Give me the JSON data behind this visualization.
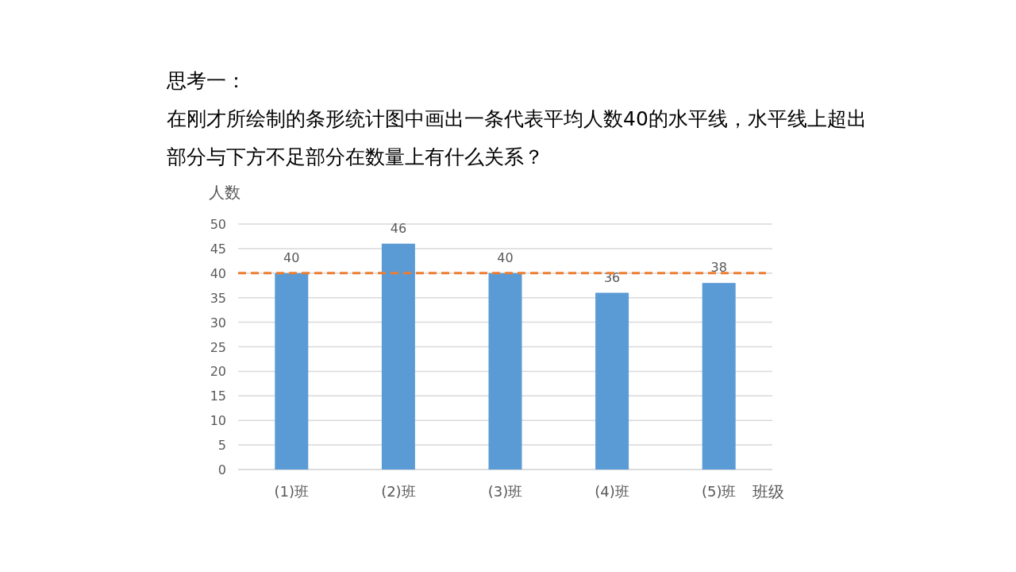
{
  "chart_data": {
    "type": "bar",
    "title": "思考一：",
    "subtitle": "在刚才所绘制的条形统计图中画出一条代表平均人数40的水平线，水平线上超出部分与下方不足部分在数量上有什么关系？",
    "xlabel": "班级",
    "ylabel": "人数",
    "categories": [
      "(1)班",
      "(2)班",
      "(3)班",
      "(4)班",
      "(5)班"
    ],
    "values": [
      40,
      46,
      40,
      36,
      38
    ],
    "color": "#5b9bd5",
    "data_labels": true,
    "ylim": [
      0,
      50
    ],
    "yticks": [
      0,
      5,
      10,
      15,
      20,
      25,
      30,
      35,
      40,
      45,
      50
    ],
    "grid": "y",
    "ref_lines": [
      {
        "axis": "y",
        "value": 40,
        "color": "#ed7d31",
        "line_style": "dashed"
      }
    ]
  }
}
